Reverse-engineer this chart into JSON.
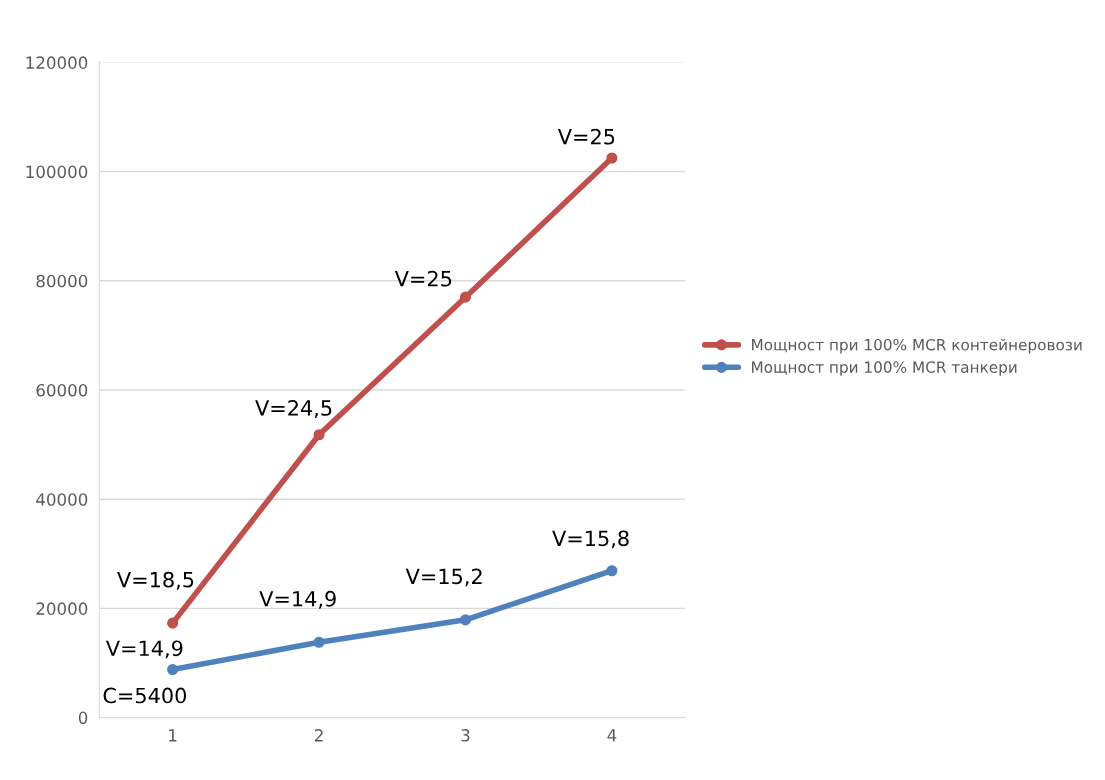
{
  "chart_data": {
    "type": "line",
    "categories": [
      "1",
      "2",
      "3",
      "4"
    ],
    "series": [
      {
        "name": "Мощност при 100% MCR контейнеровози",
        "color": "#c0504d",
        "values": [
          17300,
          51800,
          77000,
          102500
        ]
      },
      {
        "name": "Мощност при 100% MCR танкери",
        "color": "#4f81bd",
        "values": [
          8800,
          13800,
          17900,
          26900
        ]
      }
    ],
    "ylim": [
      0,
      120000
    ],
    "yticks": [
      0,
      20000,
      40000,
      60000,
      80000,
      100000,
      120000
    ],
    "grid": "y",
    "legend": "right",
    "marker": "circle",
    "line_style": "solid",
    "annotations": [
      {
        "text": "V=18,5",
        "x": "1",
        "y": 17300
      },
      {
        "text": "V=24,5",
        "x": "2",
        "y": 51800
      },
      {
        "text": "V=25",
        "x": "3",
        "y": 77000
      },
      {
        "text": "V=25",
        "x": "4",
        "y": 102500
      },
      {
        "text": "V=14,9",
        "x": "1",
        "y": 8800
      },
      {
        "text": "C=5400",
        "x": "1",
        "y": 8800
      },
      {
        "text": "V=14,9",
        "x": "2",
        "y": 13800
      },
      {
        "text": "V=15,2",
        "x": "3",
        "y": 17900
      },
      {
        "text": "V=15,8",
        "x": "4",
        "y": 26900
      }
    ]
  }
}
